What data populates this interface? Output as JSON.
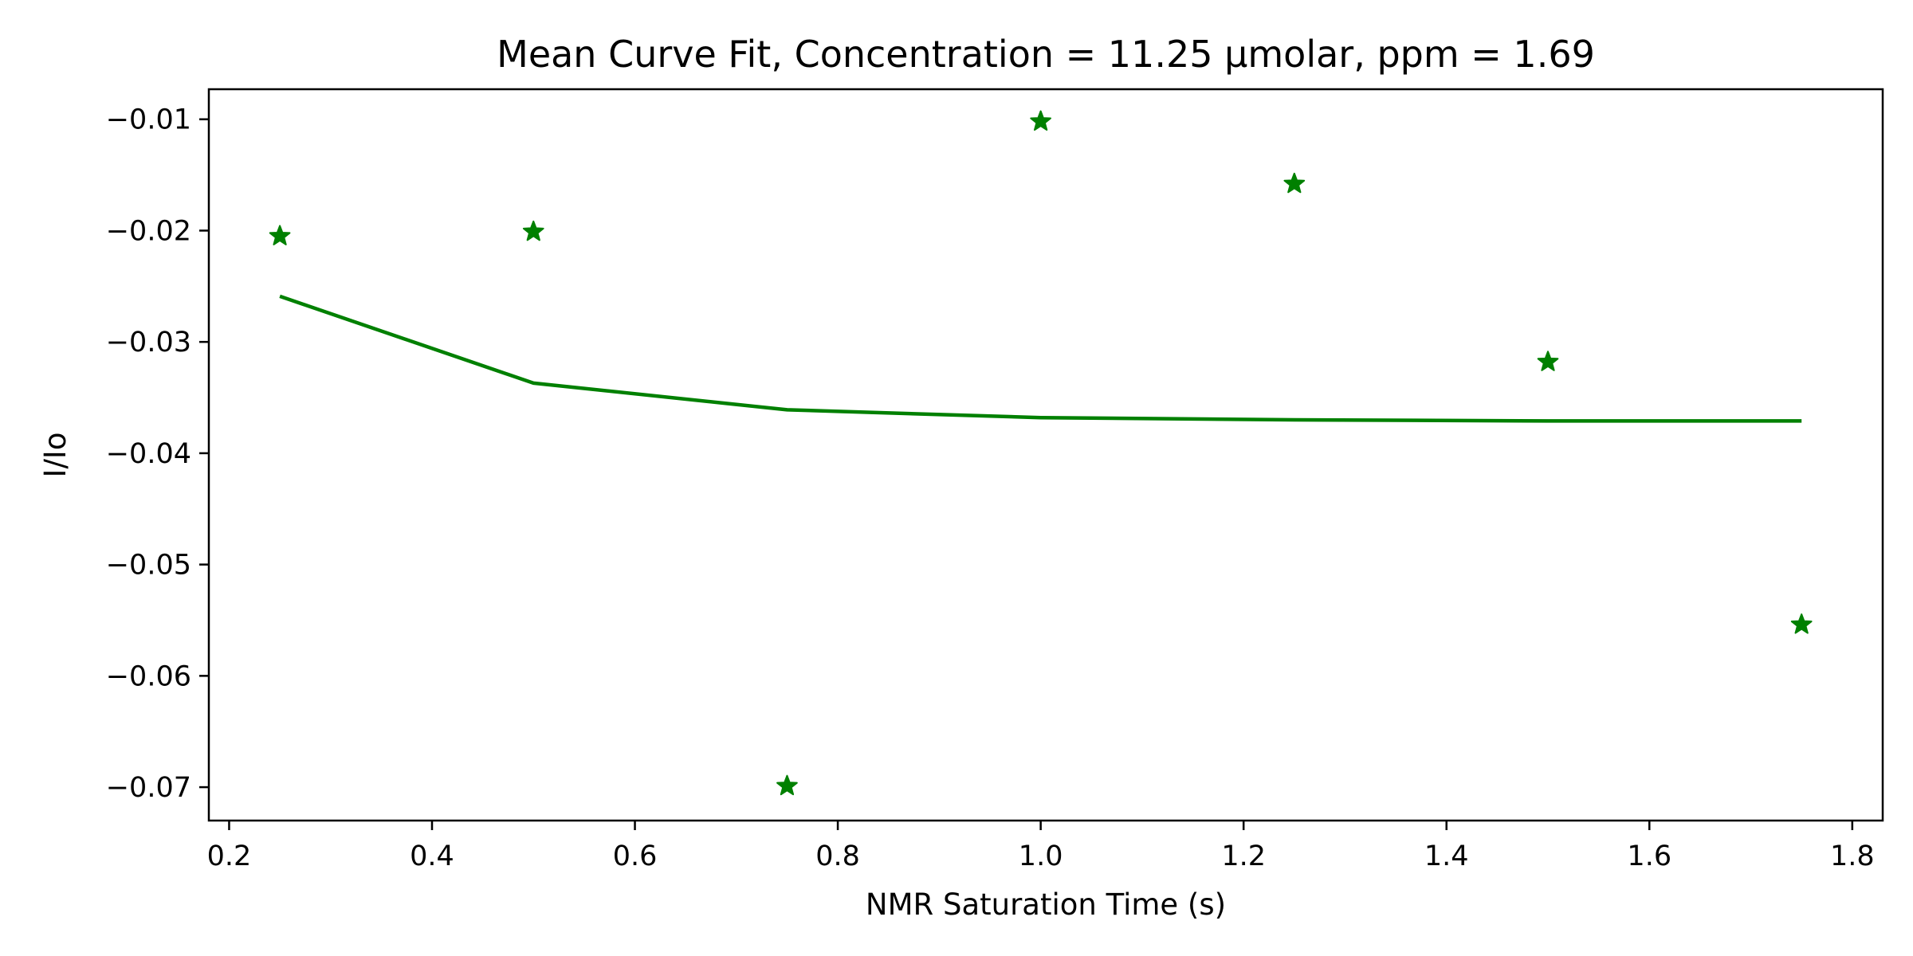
{
  "chart_data": {
    "type": "scatter",
    "title": "Mean Curve Fit, Concentration = 11.25 µmolar, ppm = 1.69",
    "xlabel": "NMR Saturation Time (s)",
    "ylabel": "I/Io",
    "xlim": [
      0.18,
      1.83
    ],
    "ylim": [
      -0.073,
      -0.0073
    ],
    "xticks": [
      0.2,
      0.4,
      0.6,
      0.8,
      1.0,
      1.2,
      1.4,
      1.6,
      1.8
    ],
    "xtick_labels": [
      "0.2",
      "0.4",
      "0.6",
      "0.8",
      "1.0",
      "1.2",
      "1.4",
      "1.6",
      "1.8"
    ],
    "yticks": [
      -0.01,
      -0.02,
      -0.03,
      -0.04,
      -0.05,
      -0.06,
      -0.07
    ],
    "ytick_labels": [
      "−0.01",
      "−0.02",
      "−0.03",
      "−0.04",
      "−0.05",
      "−0.06",
      "−0.07"
    ],
    "grid": false,
    "color": "#008000",
    "series": [
      {
        "kind": "scatter",
        "marker": "star",
        "x": [
          0.25,
          0.5,
          0.75,
          1.0,
          1.25,
          1.5,
          1.75
        ],
        "y": [
          -0.0205,
          -0.0201,
          -0.0699,
          -0.0102,
          -0.0158,
          -0.0318,
          -0.0554
        ]
      },
      {
        "kind": "line",
        "x": [
          0.25,
          0.5,
          0.75,
          1.0,
          1.25,
          1.5,
          1.75
        ],
        "y": [
          -0.0259,
          -0.0337,
          -0.0361,
          -0.0368,
          -0.037,
          -0.0371,
          -0.0371
        ]
      }
    ]
  }
}
